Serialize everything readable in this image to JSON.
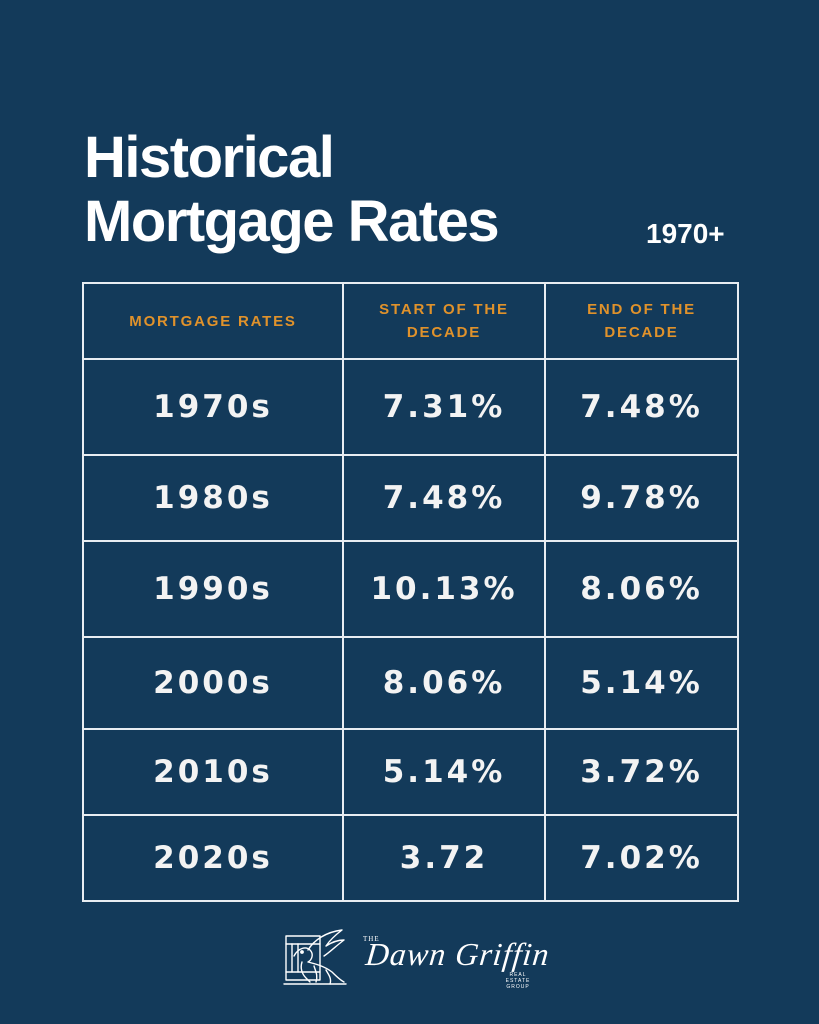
{
  "header": {
    "title_line1": "Historical",
    "title_line2": "Mortgage Rates",
    "era": "1970+"
  },
  "table": {
    "headers": {
      "col1": "MORTGAGE RATES",
      "col2_line1": "START OF THE",
      "col2_line2": "DECADE",
      "col3_line1": "END OF THE",
      "col3_line2": "DECADE"
    },
    "rows": [
      {
        "decade": "1970s",
        "start": "7.31%",
        "end": "7.48%"
      },
      {
        "decade": "1980s",
        "start": "7.48%",
        "end": "9.78%"
      },
      {
        "decade": "1990s",
        "start": "10.13%",
        "end": "8.06%"
      },
      {
        "decade": "2000s",
        "start": "8.06%",
        "end": "5.14%"
      },
      {
        "decade": "2010s",
        "start": "5.14%",
        "end": "3.72%"
      },
      {
        "decade": "2020s",
        "start": "3.72",
        "end": "7.02%"
      }
    ]
  },
  "brand": {
    "the": "THE",
    "name": "Dawn Griffin",
    "sub_line1": "REAL ESTATE",
    "sub_line2": "GROUP",
    "logo_icon": "griffin-icon"
  },
  "colors": {
    "background": "#133a5a",
    "accent": "#e0922b",
    "text": "#ffffff"
  }
}
